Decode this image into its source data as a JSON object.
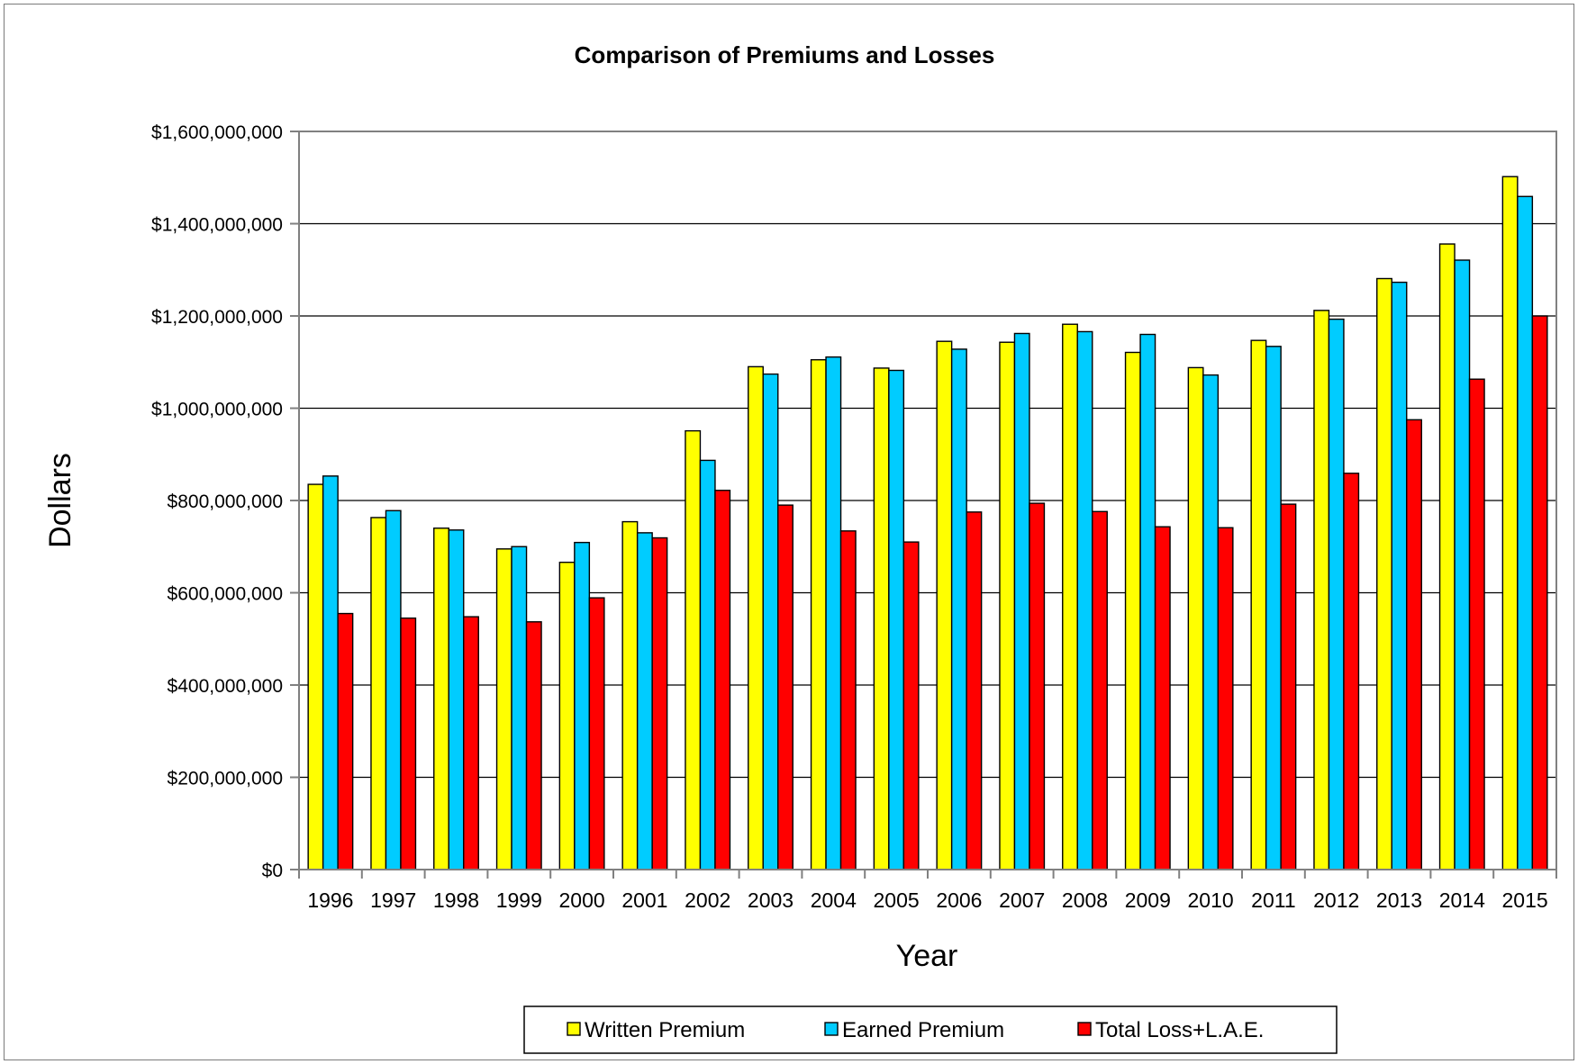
{
  "chart_data": {
    "type": "bar",
    "title": "Comparison of Premiums and Losses",
    "xlabel": "Year",
    "ylabel": "Dollars",
    "ylim": [
      0,
      1600000000
    ],
    "ytick_values": [
      0,
      200000000,
      400000000,
      600000000,
      800000000,
      1000000000,
      1200000000,
      1400000000,
      1600000000
    ],
    "ytick_labels": [
      "$0",
      "$200,000,000",
      "$400,000,000",
      "$600,000,000",
      "$800,000,000",
      "$1,000,000,000",
      "$1,200,000,000",
      "$1,400,000,000",
      "$1,600,000,000"
    ],
    "grid": true,
    "legend_position": "bottom",
    "categories": [
      "1996",
      "1997",
      "1998",
      "1999",
      "2000",
      "2001",
      "2002",
      "2003",
      "2004",
      "2005",
      "2006",
      "2007",
      "2008",
      "2009",
      "2010",
      "2011",
      "2012",
      "2013",
      "2014",
      "2015"
    ],
    "series": [
      {
        "name": "Written Premium",
        "color": "#ffff00",
        "values": [
          835000000,
          763000000,
          740000000,
          695000000,
          666000000,
          754000000,
          951000000,
          1090000000,
          1105000000,
          1087000000,
          1145000000,
          1143000000,
          1182000000,
          1121000000,
          1088000000,
          1147000000,
          1212000000,
          1281000000,
          1356000000,
          1502000000
        ]
      },
      {
        "name": "Earned Premium",
        "color": "#00ccff",
        "values": [
          853000000,
          778000000,
          736000000,
          700000000,
          709000000,
          730000000,
          887000000,
          1074000000,
          1111000000,
          1082000000,
          1128000000,
          1162000000,
          1166000000,
          1160000000,
          1072000000,
          1134000000,
          1193000000,
          1273000000,
          1321000000,
          1459000000
        ]
      },
      {
        "name": "Total Loss+L.A.E.",
        "color": "#ff0000",
        "values": [
          555000000,
          545000000,
          548000000,
          537000000,
          589000000,
          719000000,
          822000000,
          790000000,
          734000000,
          710000000,
          775000000,
          794000000,
          776000000,
          743000000,
          741000000,
          792000000,
          859000000,
          975000000,
          1063000000,
          1200000000
        ]
      }
    ]
  }
}
